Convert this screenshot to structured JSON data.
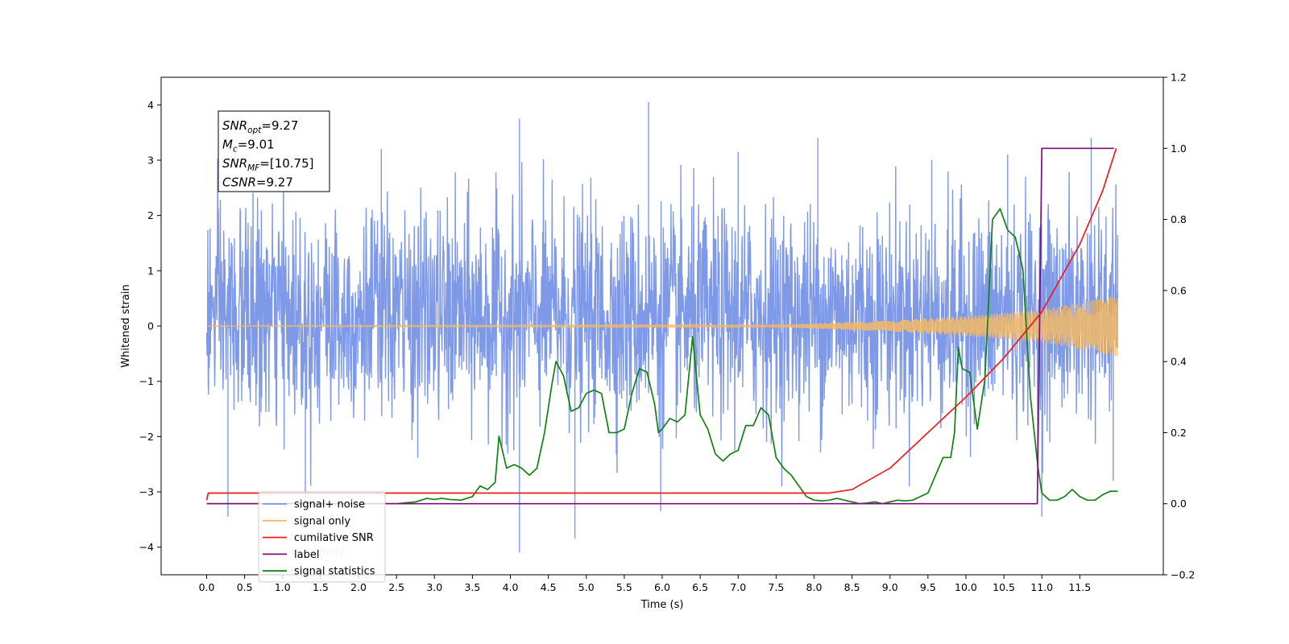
{
  "chart_data": {
    "type": "line",
    "xlabel": "Time (s)",
    "ylabel": "Whitened strain",
    "xlim": [
      -0.6,
      12.6
    ],
    "ylim": [
      -4.5,
      4.5
    ],
    "y2lim": [
      -0.2,
      1.2
    ],
    "x_ticks": [
      0.0,
      0.5,
      1.0,
      1.5,
      2.0,
      2.5,
      3.0,
      3.5,
      4.0,
      4.5,
      5.0,
      5.5,
      6.0,
      6.5,
      7.0,
      7.5,
      8.0,
      8.5,
      9.0,
      9.5,
      10.0,
      10.5,
      11.0,
      11.5
    ],
    "x_tick_labels": [
      "0.0",
      "0.5",
      "1.0",
      "1.5",
      "2.0",
      "2.5",
      "3.0",
      "3.5",
      "4.0",
      "4.5",
      "5.0",
      "5.5",
      "6.0",
      "6.5",
      "7.0",
      "7.5",
      "8.0",
      "8.5",
      "9.0",
      "9.5",
      "10.0",
      "10.5",
      "11.0",
      "11.5"
    ],
    "y_ticks": [
      -4,
      -3,
      -2,
      -1,
      0,
      1,
      2,
      3,
      4
    ],
    "y_tick_labels": [
      "−4",
      "−3",
      "−2",
      "−1",
      "0",
      "1",
      "2",
      "3",
      "4"
    ],
    "y2_ticks": [
      -0.2,
      0.0,
      0.2,
      0.4,
      0.6,
      0.8,
      1.0,
      1.2
    ],
    "y2_tick_labels": [
      "−0.2",
      "0.0",
      "0.2",
      "0.4",
      "0.6",
      "0.8",
      "1.0",
      "1.2"
    ],
    "grid": false,
    "legend_position": "lower-left",
    "annotation": {
      "lines": [
        {
          "base": "SNR",
          "sub": "opt",
          "value": "=9.27"
        },
        {
          "base": "M",
          "sub": "c",
          "value": "=9.01"
        },
        {
          "base": "SNR",
          "sub": "MF",
          "value": "=[10.75]"
        },
        {
          "base": "CSNR",
          "sub": "",
          "value": "=9.27"
        }
      ]
    },
    "series": [
      {
        "name": "signal+ noise",
        "axis": "left",
        "color": "#7893e8",
        "style": "noise",
        "x_range": [
          0.0,
          12.0
        ],
        "typical_envelope": [
          -1.9,
          2.5
        ],
        "spikes": [
          {
            "x": 0.28,
            "y": -3.45
          },
          {
            "x": 1.3,
            "y": -3.2
          },
          {
            "x": 2.3,
            "y": 3.2
          },
          {
            "x": 4.12,
            "y": 3.75
          },
          {
            "x": 4.12,
            "y": -4.1
          },
          {
            "x": 4.85,
            "y": -3.85
          },
          {
            "x": 5.82,
            "y": 4.05
          },
          {
            "x": 5.98,
            "y": -3.35
          },
          {
            "x": 7.0,
            "y": 3.15
          },
          {
            "x": 8.05,
            "y": 3.4
          },
          {
            "x": 11.0,
            "y": -3.45
          },
          {
            "x": 11.65,
            "y": 3.4
          },
          {
            "x": 11.94,
            "y": -2.8
          },
          {
            "x": 10.55,
            "y": 3.1
          },
          {
            "x": 9.55,
            "y": 3.0
          }
        ]
      },
      {
        "name": "signal only",
        "axis": "left",
        "color": "#f2b866",
        "style": "chirp",
        "x_range": [
          0.0,
          12.0
        ],
        "amplitude_points": [
          [
            0.0,
            0.01
          ],
          [
            7.5,
            0.02
          ],
          [
            9.0,
            0.1
          ],
          [
            10.0,
            0.18
          ],
          [
            11.0,
            0.3
          ],
          [
            12.0,
            0.55
          ]
        ]
      },
      {
        "name": "cumilative SNR",
        "axis": "right",
        "color": "#ee1c1c",
        "points": [
          [
            0.0,
            0.01
          ],
          [
            0.02,
            0.03
          ],
          [
            8.2,
            0.03
          ],
          [
            8.5,
            0.04
          ],
          [
            9.0,
            0.1
          ],
          [
            9.5,
            0.2
          ],
          [
            10.0,
            0.3
          ],
          [
            10.5,
            0.41
          ],
          [
            11.0,
            0.54
          ],
          [
            11.5,
            0.73
          ],
          [
            11.8,
            0.88
          ],
          [
            11.98,
            1.0
          ]
        ]
      },
      {
        "name": "label",
        "axis": "right",
        "color": "#7b0f7b",
        "points": [
          [
            0.0,
            0.0
          ],
          [
            10.94,
            0.0
          ],
          [
            11.0,
            1.0
          ],
          [
            11.95,
            1.0
          ]
        ]
      },
      {
        "name": "signal statistics",
        "axis": "right",
        "color": "#128012",
        "points": [
          [
            0.0,
            0.0
          ],
          [
            2.5,
            0.0
          ],
          [
            2.75,
            0.005
          ],
          [
            2.9,
            0.015
          ],
          [
            3.0,
            0.012
          ],
          [
            3.1,
            0.015
          ],
          [
            3.2,
            0.012
          ],
          [
            3.35,
            0.01
          ],
          [
            3.5,
            0.02
          ],
          [
            3.6,
            0.05
          ],
          [
            3.7,
            0.04
          ],
          [
            3.8,
            0.06
          ],
          [
            3.85,
            0.19
          ],
          [
            3.95,
            0.1
          ],
          [
            4.05,
            0.11
          ],
          [
            4.15,
            0.1
          ],
          [
            4.25,
            0.08
          ],
          [
            4.35,
            0.1
          ],
          [
            4.45,
            0.2
          ],
          [
            4.55,
            0.34
          ],
          [
            4.6,
            0.4
          ],
          [
            4.7,
            0.36
          ],
          [
            4.8,
            0.26
          ],
          [
            4.9,
            0.27
          ],
          [
            5.0,
            0.31
          ],
          [
            5.1,
            0.32
          ],
          [
            5.2,
            0.31
          ],
          [
            5.3,
            0.2
          ],
          [
            5.4,
            0.2
          ],
          [
            5.5,
            0.21
          ],
          [
            5.6,
            0.31
          ],
          [
            5.7,
            0.38
          ],
          [
            5.8,
            0.37
          ],
          [
            5.9,
            0.28
          ],
          [
            5.95,
            0.2
          ],
          [
            6.0,
            0.21
          ],
          [
            6.1,
            0.24
          ],
          [
            6.2,
            0.23
          ],
          [
            6.3,
            0.25
          ],
          [
            6.4,
            0.47
          ],
          [
            6.5,
            0.25
          ],
          [
            6.6,
            0.21
          ],
          [
            6.7,
            0.14
          ],
          [
            6.8,
            0.12
          ],
          [
            6.9,
            0.14
          ],
          [
            7.0,
            0.15
          ],
          [
            7.1,
            0.22
          ],
          [
            7.2,
            0.22
          ],
          [
            7.3,
            0.27
          ],
          [
            7.4,
            0.25
          ],
          [
            7.5,
            0.13
          ],
          [
            7.6,
            0.1
          ],
          [
            7.7,
            0.08
          ],
          [
            7.8,
            0.05
          ],
          [
            7.9,
            0.02
          ],
          [
            8.0,
            0.01
          ],
          [
            8.1,
            0.008
          ],
          [
            8.2,
            0.01
          ],
          [
            8.3,
            0.015
          ],
          [
            8.4,
            0.01
          ],
          [
            8.5,
            0.005
          ],
          [
            8.6,
            0.0
          ],
          [
            8.7,
            0.002
          ],
          [
            8.8,
            0.005
          ],
          [
            8.9,
            0.0
          ],
          [
            9.0,
            0.005
          ],
          [
            9.1,
            0.01
          ],
          [
            9.2,
            0.008
          ],
          [
            9.3,
            0.01
          ],
          [
            9.4,
            0.02
          ],
          [
            9.5,
            0.03
          ],
          [
            9.6,
            0.08
          ],
          [
            9.7,
            0.13
          ],
          [
            9.8,
            0.13
          ],
          [
            9.85,
            0.2
          ],
          [
            9.9,
            0.44
          ],
          [
            9.95,
            0.38
          ],
          [
            10.05,
            0.37
          ],
          [
            10.15,
            0.21
          ],
          [
            10.25,
            0.35
          ],
          [
            10.35,
            0.8
          ],
          [
            10.45,
            0.83
          ],
          [
            10.55,
            0.77
          ],
          [
            10.65,
            0.75
          ],
          [
            10.75,
            0.66
          ],
          [
            10.85,
            0.3
          ],
          [
            10.95,
            0.1
          ],
          [
            11.0,
            0.03
          ],
          [
            11.1,
            0.01
          ],
          [
            11.2,
            0.01
          ],
          [
            11.3,
            0.02
          ],
          [
            11.4,
            0.04
          ],
          [
            11.5,
            0.02
          ],
          [
            11.6,
            0.01
          ],
          [
            11.7,
            0.01
          ],
          [
            11.8,
            0.025
          ],
          [
            11.9,
            0.035
          ],
          [
            12.0,
            0.035
          ]
        ]
      }
    ],
    "legend": [
      {
        "label": "signal+ noise",
        "color": "#7893e8"
      },
      {
        "label": "signal only",
        "color": "#f2b866"
      },
      {
        "label": "cumilative SNR",
        "color": "#ee1c1c"
      },
      {
        "label": "label",
        "color": "#7b0f7b"
      },
      {
        "label": "signal statistics",
        "color": "#128012"
      }
    ],
    "legend_occluded_text": [
      "signal only",
      "label only",
      "signal statistics"
    ]
  }
}
